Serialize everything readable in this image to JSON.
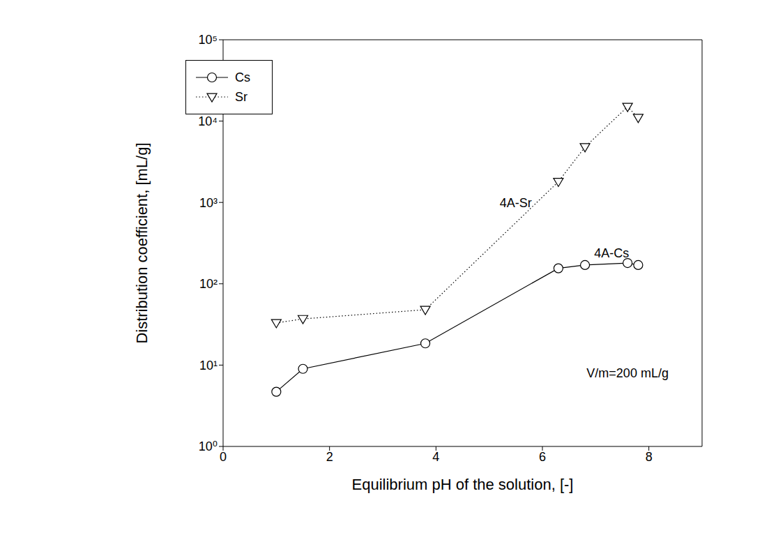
{
  "chart_data": {
    "type": "line",
    "x_label": "Equilibrium pH of the solution, [-]",
    "y_label": "Distribution coefficient, [mL/g]",
    "log": "y",
    "grid": false,
    "legend": "upper left",
    "xlim": [
      0,
      9
    ],
    "xticks": [
      0,
      2,
      4,
      6,
      8
    ],
    "ylim": [
      1,
      100000
    ],
    "yticks": [
      {
        "value": 1,
        "label": "10⁰"
      },
      {
        "value": 10,
        "label": "10¹"
      },
      {
        "value": 100,
        "label": "10²"
      },
      {
        "value": 1000,
        "label": "10³"
      },
      {
        "value": 10000,
        "label": "10⁴"
      },
      {
        "value": 100000,
        "label": "10⁵"
      }
    ],
    "series": [
      {
        "name": "Cs",
        "color": "#000000",
        "marker": "circle",
        "line_style": "solid",
        "x": [
          1.0,
          1.5,
          3.8,
          6.3,
          6.8,
          7.6,
          7.8
        ],
        "values": [
          4.7,
          9,
          18.5,
          155,
          170,
          180,
          170
        ]
      },
      {
        "name": "Sr",
        "color": "#000000",
        "marker": "triangle-down",
        "line_style": "dotted",
        "x": [
          1.0,
          1.5,
          3.8,
          6.3,
          6.8,
          7.6,
          7.8
        ],
        "values": [
          33,
          37,
          48,
          1800,
          4800,
          15000,
          11000
        ]
      }
    ],
    "annotations": [
      {
        "text": "4A-Sr",
        "x": 5.5,
        "y": 1000
      },
      {
        "text": "4A-Cs",
        "x": 7.3,
        "y": 240
      },
      {
        "text": "V/m=200 mL/g",
        "x": 7.6,
        "y": 8
      }
    ]
  }
}
